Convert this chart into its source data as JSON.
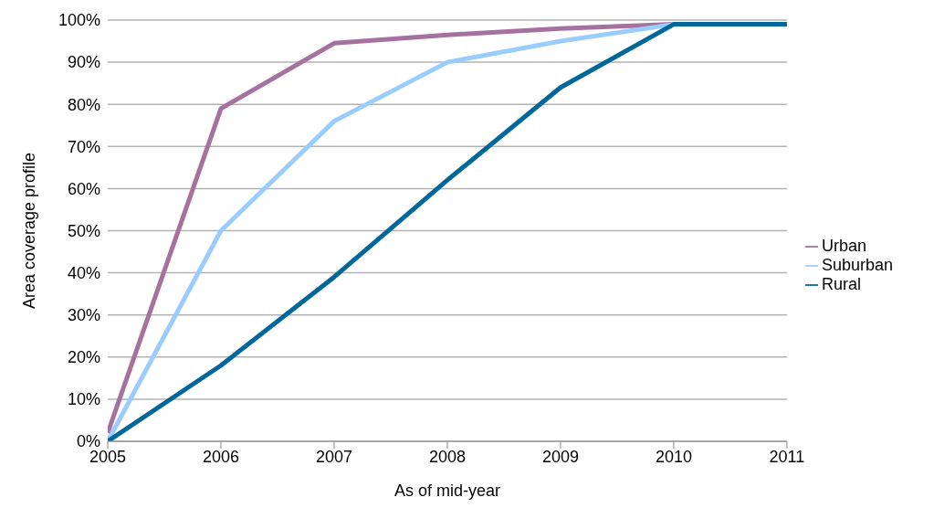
{
  "chart_data": {
    "type": "line",
    "xlabel": "As of mid-year",
    "ylabel": "Area coverage profile",
    "x": [
      2005,
      2006,
      2007,
      2008,
      2009,
      2010,
      2011
    ],
    "series": [
      {
        "name": "Urban",
        "color": "#a5729f",
        "values": [
          2,
          79,
          94.5,
          96.5,
          98,
          99,
          null
        ]
      },
      {
        "name": "Suburban",
        "color": "#99ccff",
        "values": [
          0,
          50,
          76,
          90,
          95,
          99,
          null
        ]
      },
      {
        "name": "Rural",
        "color": "#00679a",
        "values": [
          0,
          18,
          39,
          62,
          84,
          99,
          99
        ]
      }
    ],
    "xlim": [
      2005,
      2011
    ],
    "xticks": [
      2005,
      2006,
      2007,
      2008,
      2009,
      2010,
      2011
    ],
    "ylim": [
      0,
      100
    ],
    "yticks": [
      {
        "value": 0,
        "label": "0%"
      },
      {
        "value": 10,
        "label": "10%"
      },
      {
        "value": 20,
        "label": "20%"
      },
      {
        "value": 30,
        "label": "30%"
      },
      {
        "value": 40,
        "label": "40%"
      },
      {
        "value": 50,
        "label": "50%"
      },
      {
        "value": 60,
        "label": "60%"
      },
      {
        "value": 70,
        "label": "70%"
      },
      {
        "value": 80,
        "label": "80%"
      },
      {
        "value": 90,
        "label": "90%"
      },
      {
        "value": 100,
        "label": "100%"
      }
    ],
    "grid": "y",
    "legend": "right",
    "marker": "none",
    "line_style": "solid"
  }
}
